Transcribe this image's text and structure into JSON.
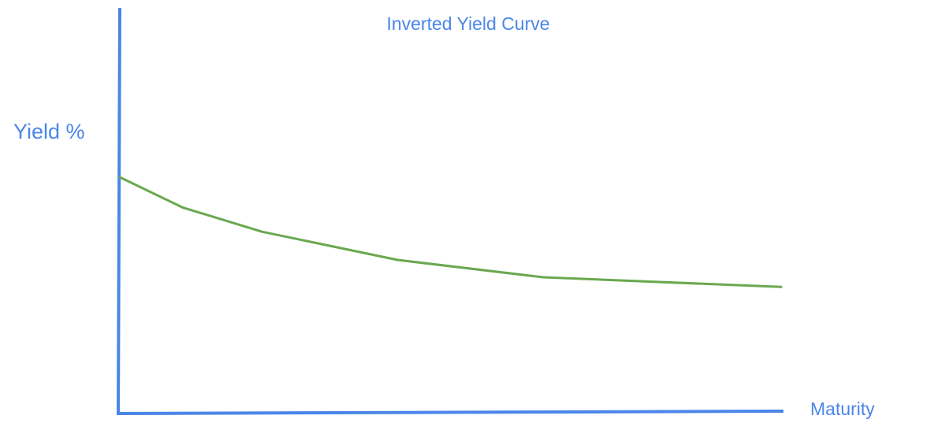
{
  "chart_data": {
    "type": "line",
    "title": "Inverted Yield Curve",
    "xlabel": "Maturity",
    "ylabel": "Yield %",
    "xlim": [
      0,
      10
    ],
    "ylim": [
      0,
      10
    ],
    "grid": false,
    "legend": "none",
    "series": [
      {
        "x": [
          0,
          0.95,
          2.15,
          4.2,
          6.4,
          10
        ],
        "values": [
          5.8,
          5.05,
          4.45,
          3.75,
          3.32,
          3.08
        ]
      }
    ],
    "colors": {
      "axis": "#4a86e8",
      "line": "#6aa84f",
      "text": "#4a86e8"
    }
  }
}
